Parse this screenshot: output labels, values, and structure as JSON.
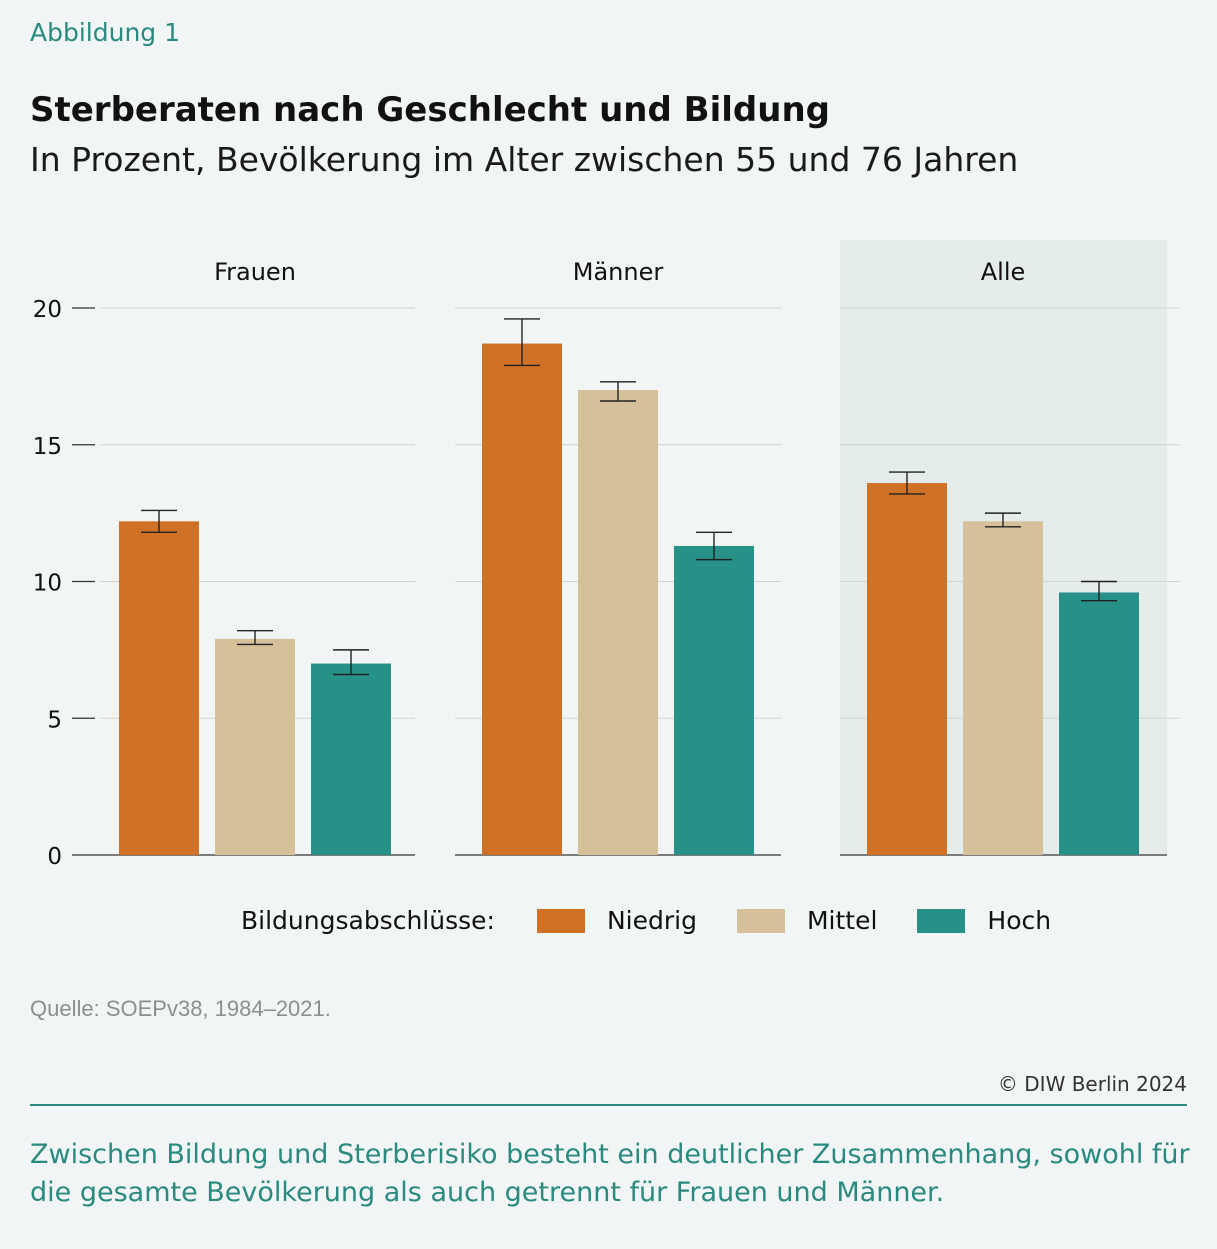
{
  "header": {
    "figure_label": "Abbildung 1",
    "title": "Sterberaten nach Geschlecht und Bildung",
    "subtitle": "In Prozent, Bevölkerung im Alter zwischen 55 und 76 Jahren"
  },
  "colors": {
    "Niedrig": "#cf7227",
    "Mittel": "#d6c09a",
    "Hoch": "#279087",
    "highlight_panel": "#e4ecec",
    "accent": "#2a8a7f"
  },
  "chart_data": {
    "type": "bar",
    "ylim": [
      0,
      20
    ],
    "yticks": [
      0,
      5,
      10,
      15,
      20
    ],
    "grid": true,
    "panels": [
      "Frauen",
      "Männer",
      "Alle"
    ],
    "highlighted_panel": "Alle",
    "series": [
      {
        "name": "Niedrig",
        "values": [
          12.2,
          18.7,
          13.6
        ],
        "err_low": [
          11.8,
          17.9,
          13.2
        ],
        "err_high": [
          12.6,
          19.6,
          14.0
        ]
      },
      {
        "name": "Mittel",
        "values": [
          7.9,
          17.0,
          12.2
        ],
        "err_low": [
          7.7,
          16.6,
          12.0
        ],
        "err_high": [
          8.2,
          17.3,
          12.5
        ]
      },
      {
        "name": "Hoch",
        "values": [
          7.0,
          11.3,
          9.6
        ],
        "err_low": [
          6.6,
          10.8,
          9.3
        ],
        "err_high": [
          7.5,
          11.8,
          10.0
        ]
      }
    ]
  },
  "legend": {
    "title": "Bildungsabschlüsse:",
    "items": [
      "Niedrig",
      "Mittel",
      "Hoch"
    ]
  },
  "footer": {
    "source": "Quelle: SOEPv38, 1984–2021.",
    "copyright": "© DIW Berlin 2024",
    "caption": "Zwischen Bildung und Sterberisiko besteht ein deutlicher Zusammenhang, sowohl für die gesamte Bevölkerung als auch getrennt für Frauen und Männer."
  }
}
